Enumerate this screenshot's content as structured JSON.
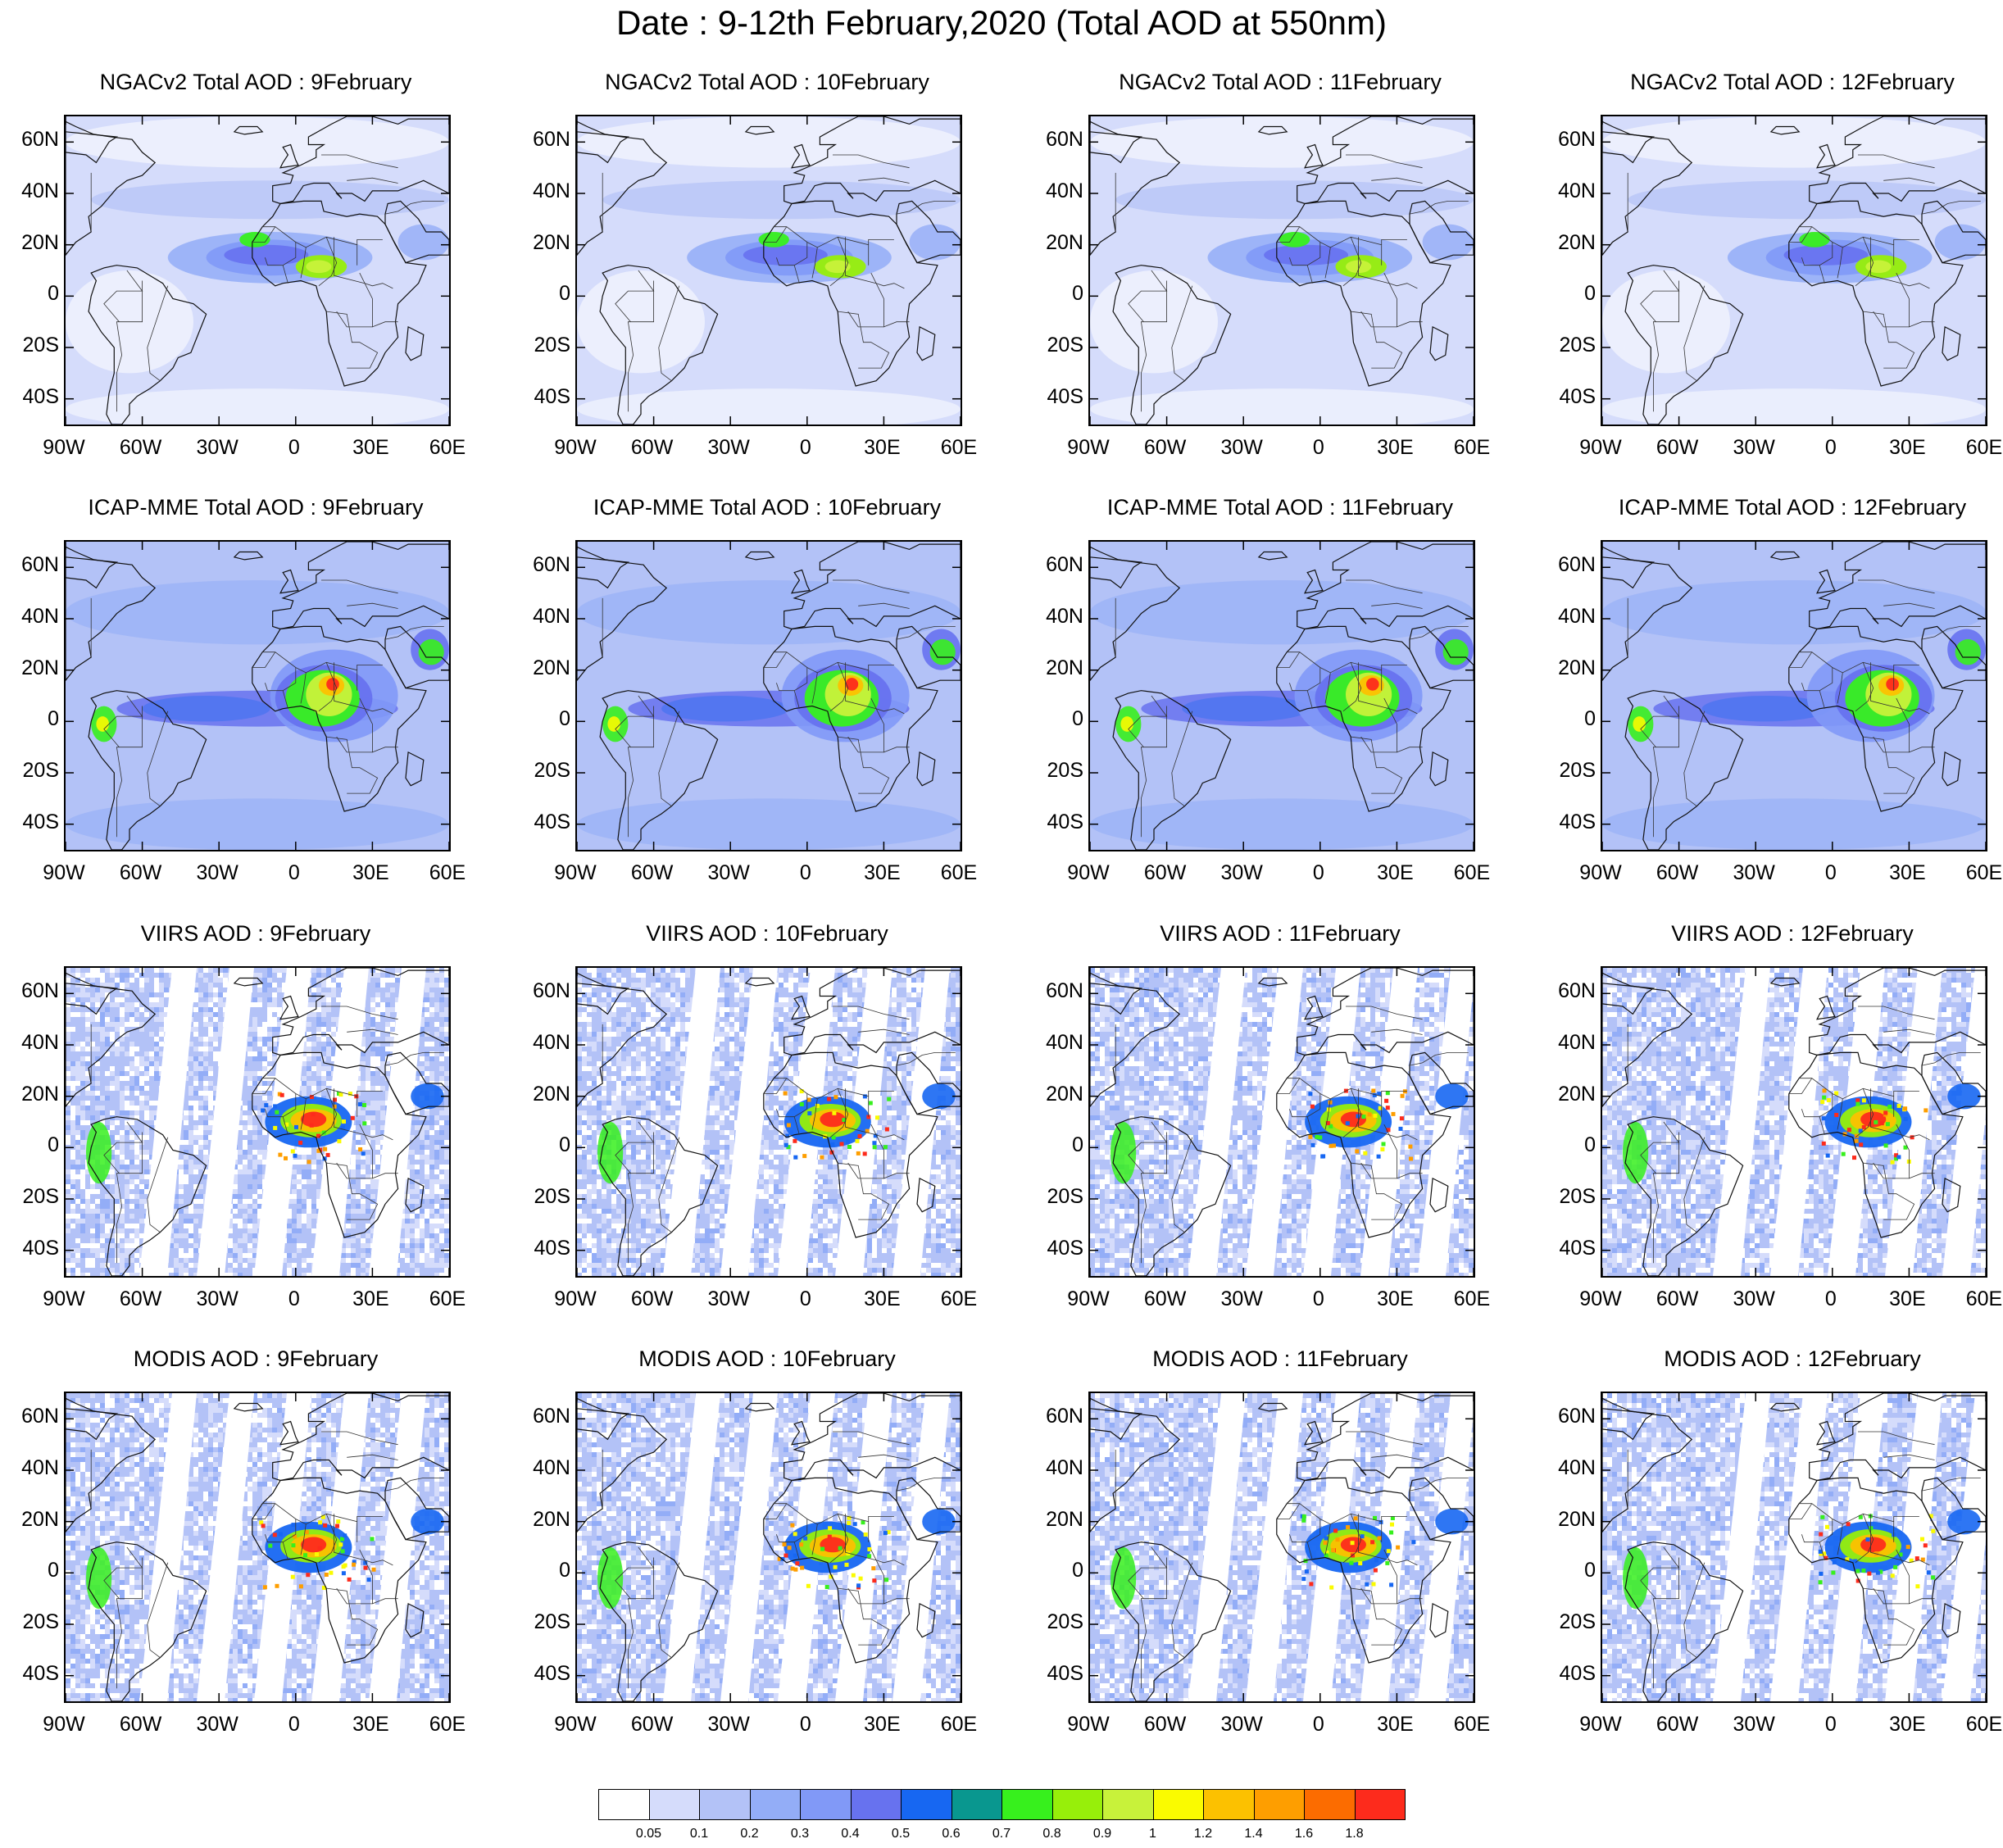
{
  "title": "Date : 9-12th February,2020 (Total AOD at 550nm)",
  "rows": [
    {
      "product": "NGACv2 Total AOD",
      "style": "smooth-low",
      "titles": [
        "NGACv2 Total AOD : 9February",
        "NGACv2 Total AOD : 10February",
        "NGACv2 Total AOD : 11February",
        "NGACv2 Total AOD : 12February"
      ]
    },
    {
      "product": "ICAP-MME Total AOD",
      "style": "smooth-high",
      "titles": [
        "ICAP-MME Total AOD : 9February",
        "ICAP-MME Total AOD : 10February",
        "ICAP-MME Total AOD : 11February",
        "ICAP-MME Total AOD : 12February"
      ]
    },
    {
      "product": "VIIRS AOD",
      "style": "satellite-swath",
      "titles": [
        "VIIRS AOD : 9February",
        "VIIRS AOD : 10February",
        "VIIRS AOD : 11February",
        "VIIRS AOD : 12February"
      ]
    },
    {
      "product": "MODIS AOD",
      "style": "satellite-swath",
      "titles": [
        "MODIS AOD : 9February",
        "MODIS AOD : 10February",
        "MODIS AOD : 11February",
        "MODIS AOD : 12February"
      ]
    }
  ],
  "lat_ticks": [
    "60N",
    "40N",
    "20N",
    "0",
    "20S",
    "40S"
  ],
  "lon_ticks": [
    "90W",
    "60W",
    "30W",
    "0",
    "30E",
    "60E"
  ],
  "map_extent": {
    "lon_min": -90,
    "lon_max": 60,
    "lat_min": -50,
    "lat_max": 70
  },
  "colorbar": {
    "colors": [
      "#ffffff",
      "#d5dcfb",
      "#b3c2f7",
      "#93adf7",
      "#8199f7",
      "#6772ef",
      "#1767f2",
      "#09978f",
      "#37f01d",
      "#97ef0a",
      "#c8f23a",
      "#fafb00",
      "#fcc100",
      "#fe9e00",
      "#fc6c00",
      "#fd2b1c"
    ],
    "labels": [
      "0.05",
      "0.1",
      "0.2",
      "0.3",
      "0.4",
      "0.5",
      "0.6",
      "0.7",
      "0.8",
      "0.9",
      "1",
      "1.2",
      "1.4",
      "1.6",
      "1.8"
    ]
  }
}
